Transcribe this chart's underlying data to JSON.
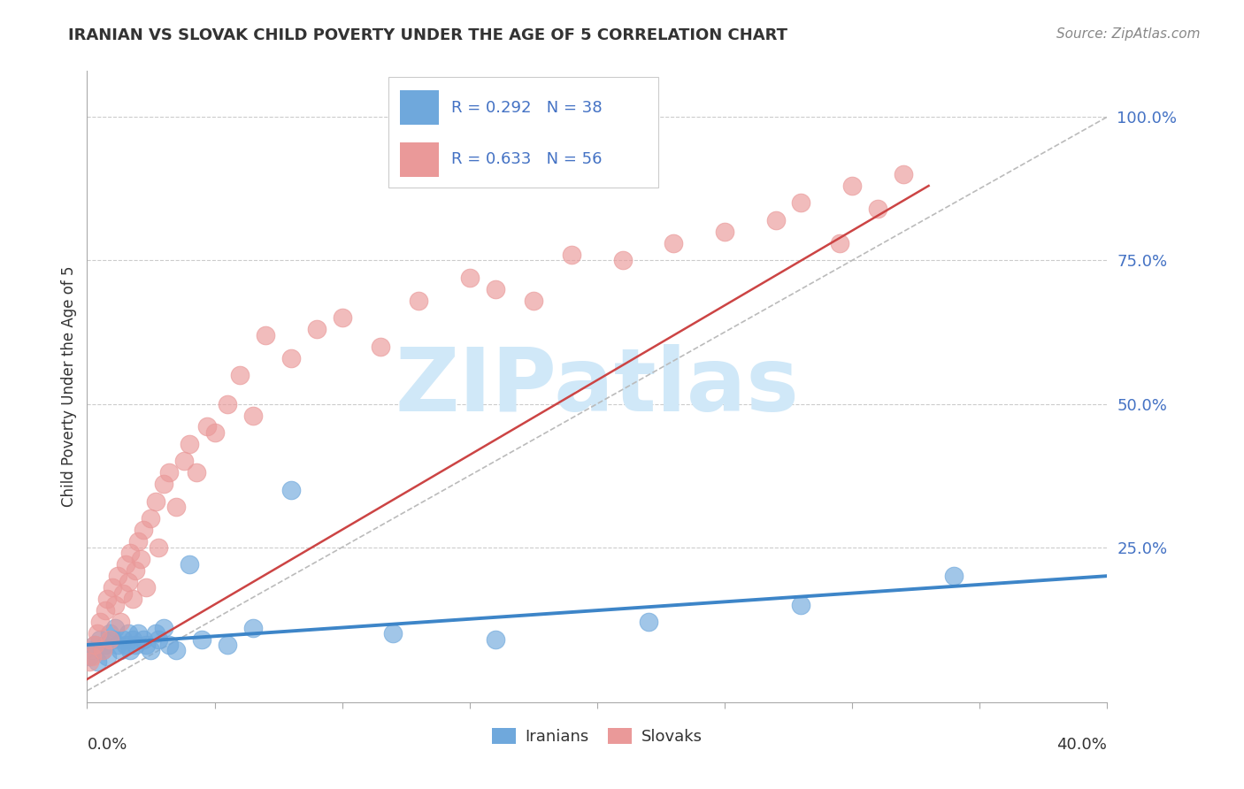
{
  "title": "IRANIAN VS SLOVAK CHILD POVERTY UNDER THE AGE OF 5 CORRELATION CHART",
  "source": "Source: ZipAtlas.com",
  "ylabel": "Child Poverty Under the Age of 5",
  "xlim": [
    0.0,
    0.4
  ],
  "ylim": [
    -0.02,
    1.08
  ],
  "iranian_color": "#6fa8dc",
  "iranian_line_color": "#3d85c8",
  "slovak_color": "#ea9999",
  "slovak_line_color": "#cc4444",
  "diag_color": "#bbbbbb",
  "iranian_R": 0.292,
  "iranian_N": 38,
  "slovak_R": 0.633,
  "slovak_N": 56,
  "watermark_text": "ZIPatlas",
  "watermark_color": "#d0e8f8",
  "grid_color": "#cccccc",
  "spine_color": "#aaaaaa",
  "ytick_color": "#4472c4",
  "text_color": "#333333",
  "source_color": "#888888",
  "title_fontsize": 13,
  "source_fontsize": 11,
  "axis_fontsize": 12,
  "legend_fontsize": 13,
  "iranians_x": [
    0.001,
    0.002,
    0.003,
    0.004,
    0.005,
    0.006,
    0.007,
    0.008,
    0.009,
    0.01,
    0.011,
    0.012,
    0.013,
    0.014,
    0.015,
    0.016,
    0.017,
    0.018,
    0.019,
    0.02,
    0.022,
    0.023,
    0.025,
    0.027,
    0.028,
    0.03,
    0.032,
    0.035,
    0.04,
    0.045,
    0.055,
    0.065,
    0.08,
    0.12,
    0.16,
    0.22,
    0.28,
    0.34
  ],
  "iranians_y": [
    0.06,
    0.07,
    0.08,
    0.05,
    0.09,
    0.07,
    0.08,
    0.06,
    0.1,
    0.09,
    0.11,
    0.08,
    0.07,
    0.09,
    0.08,
    0.1,
    0.07,
    0.09,
    0.08,
    0.1,
    0.09,
    0.08,
    0.07,
    0.1,
    0.09,
    0.11,
    0.08,
    0.07,
    0.22,
    0.09,
    0.08,
    0.11,
    0.35,
    0.1,
    0.09,
    0.12,
    0.15,
    0.2
  ],
  "slovaks_x": [
    0.001,
    0.002,
    0.003,
    0.004,
    0.005,
    0.006,
    0.007,
    0.008,
    0.009,
    0.01,
    0.011,
    0.012,
    0.013,
    0.014,
    0.015,
    0.016,
    0.017,
    0.018,
    0.019,
    0.02,
    0.021,
    0.022,
    0.023,
    0.025,
    0.027,
    0.028,
    0.03,
    0.032,
    0.035,
    0.038,
    0.04,
    0.043,
    0.047,
    0.05,
    0.055,
    0.06,
    0.065,
    0.07,
    0.08,
    0.09,
    0.1,
    0.115,
    0.13,
    0.15,
    0.16,
    0.175,
    0.19,
    0.21,
    0.23,
    0.25,
    0.27,
    0.28,
    0.295,
    0.3,
    0.31,
    0.32
  ],
  "slovaks_y": [
    0.05,
    0.06,
    0.08,
    0.1,
    0.12,
    0.07,
    0.14,
    0.16,
    0.09,
    0.18,
    0.15,
    0.2,
    0.12,
    0.17,
    0.22,
    0.19,
    0.24,
    0.16,
    0.21,
    0.26,
    0.23,
    0.28,
    0.18,
    0.3,
    0.33,
    0.25,
    0.36,
    0.38,
    0.32,
    0.4,
    0.43,
    0.38,
    0.46,
    0.45,
    0.5,
    0.55,
    0.48,
    0.62,
    0.58,
    0.63,
    0.65,
    0.6,
    0.68,
    0.72,
    0.7,
    0.68,
    0.76,
    0.75,
    0.78,
    0.8,
    0.82,
    0.85,
    0.78,
    0.88,
    0.84,
    0.9
  ],
  "iran_line_x0": 0.0,
  "iran_line_x1": 0.4,
  "iran_line_y0": 0.08,
  "iran_line_y1": 0.2,
  "slovak_line_x0": 0.0,
  "slovak_line_x1": 0.33,
  "slovak_line_y0": 0.02,
  "slovak_line_y1": 0.88,
  "diag_line_x0": 0.0,
  "diag_line_x1": 0.4,
  "diag_line_y0": 0.0,
  "diag_line_y1": 1.0
}
